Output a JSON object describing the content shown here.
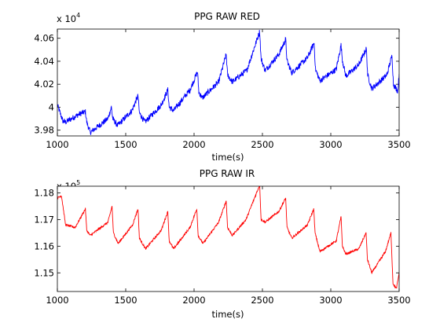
{
  "chart_data": [
    {
      "type": "line",
      "title": "PPG RAW RED",
      "xlabel": "time(s)",
      "ylabel": "",
      "y_multiplier": {
        "base": "x 10",
        "exp": "4"
      },
      "xlim": [
        1000,
        3500
      ],
      "ylim": [
        39750,
        40680
      ],
      "xticks": [
        1000,
        1500,
        2000,
        2500,
        3000,
        3500
      ],
      "yticks": [
        39800,
        40000,
        40200,
        40400,
        40600
      ],
      "ytick_labels": [
        "3.98",
        "4",
        "4.02",
        "4.04",
        "4.06"
      ],
      "grid": false,
      "noise": 25,
      "series": [
        {
          "color": "#0000ff",
          "x": [
            1000,
            1040,
            1060,
            1160,
            1205,
            1215,
            1240,
            1370,
            1395,
            1405,
            1440,
            1545,
            1590,
            1600,
            1640,
            1760,
            1808,
            1818,
            1850,
            1970,
            2025,
            2035,
            2060,
            2180,
            2235,
            2245,
            2280,
            2385,
            2480,
            2490,
            2520,
            2620,
            2670,
            2680,
            2715,
            2830,
            2878,
            2888,
            2920,
            3040,
            3075,
            3085,
            3110,
            3205,
            3260,
            3270,
            3300,
            3410,
            3448,
            3458,
            3490,
            3500
          ],
          "values": [
            40020,
            39880,
            39870,
            39940,
            39960,
            39870,
            39780,
            39900,
            40000,
            39900,
            39840,
            39970,
            40100,
            39950,
            39870,
            40020,
            40150,
            40000,
            39970,
            40150,
            40310,
            40130,
            40080,
            40220,
            40460,
            40280,
            40220,
            40320,
            40660,
            40420,
            40320,
            40460,
            40590,
            40400,
            40300,
            40430,
            40560,
            40330,
            40230,
            40330,
            40540,
            40410,
            40270,
            40370,
            40510,
            40280,
            40160,
            40280,
            40450,
            40200,
            40140,
            40290
          ]
        }
      ]
    },
    {
      "type": "line",
      "title": "PPG RAW IR",
      "xlabel": "time(s)",
      "ylabel": "",
      "y_multiplier": {
        "base": "x 10",
        "exp": "5"
      },
      "xlim": [
        1000,
        3500
      ],
      "ylim": [
        114300,
        118250
      ],
      "xticks": [
        1000,
        1500,
        2000,
        2500,
        3000,
        3500
      ],
      "yticks": [
        115000,
        116000,
        117000,
        118000
      ],
      "ytick_labels": [
        "1.15",
        "1.16",
        "1.17",
        "1.18"
      ],
      "grid": false,
      "noise": 40,
      "series": [
        {
          "color": "#ff0000",
          "x": [
            1000,
            1030,
            1060,
            1130,
            1205,
            1215,
            1240,
            1370,
            1400,
            1410,
            1445,
            1550,
            1590,
            1600,
            1645,
            1760,
            1808,
            1818,
            1850,
            1970,
            2020,
            2030,
            2065,
            2180,
            2235,
            2245,
            2280,
            2380,
            2480,
            2490,
            2520,
            2620,
            2670,
            2680,
            2715,
            2830,
            2875,
            2885,
            2920,
            3040,
            3075,
            3085,
            3110,
            3205,
            3258,
            3268,
            3300,
            3400,
            3440,
            3455,
            3480,
            3500
          ],
          "values": [
            117800,
            117900,
            116800,
            116700,
            117400,
            116600,
            116400,
            116900,
            117500,
            116500,
            116100,
            116800,
            117400,
            116300,
            115900,
            116600,
            117300,
            116200,
            115900,
            116700,
            117400,
            116400,
            116100,
            116900,
            117700,
            116700,
            116400,
            117000,
            118300,
            117000,
            116900,
            117300,
            117800,
            116700,
            116300,
            116800,
            117400,
            116500,
            115800,
            116200,
            117100,
            116000,
            115700,
            115900,
            116500,
            115500,
            115000,
            115800,
            116500,
            114600,
            114400,
            115000
          ]
        }
      ]
    }
  ]
}
